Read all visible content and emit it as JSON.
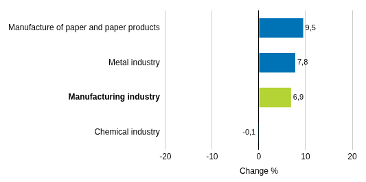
{
  "chart_data": {
    "type": "bar",
    "orientation": "horizontal",
    "categories": [
      "Manufacture of paper and paper products",
      "Metal industry",
      "Manufacturing industry",
      "Chemical industry"
    ],
    "values": [
      9.5,
      7.8,
      6.9,
      -0.1
    ],
    "value_labels": [
      "9,5",
      "7,8",
      "6,9",
      "-0,1"
    ],
    "colors": [
      "#0073b7",
      "#0073b7",
      "#b4d334",
      "#0073b7"
    ],
    "xlabel": "Change %",
    "xlim": [
      -20,
      20
    ],
    "xticks": [
      -20,
      -10,
      0,
      10,
      20
    ],
    "grid": true,
    "data_labels": true
  }
}
